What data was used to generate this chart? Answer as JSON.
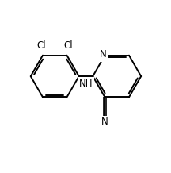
{
  "background": "#ffffff",
  "line_color": "#000000",
  "line_width": 1.4,
  "font_size_labels": 8.5,
  "xlim": [
    -0.12,
    1.05
  ],
  "ylim": [
    -0.08,
    1.05
  ]
}
